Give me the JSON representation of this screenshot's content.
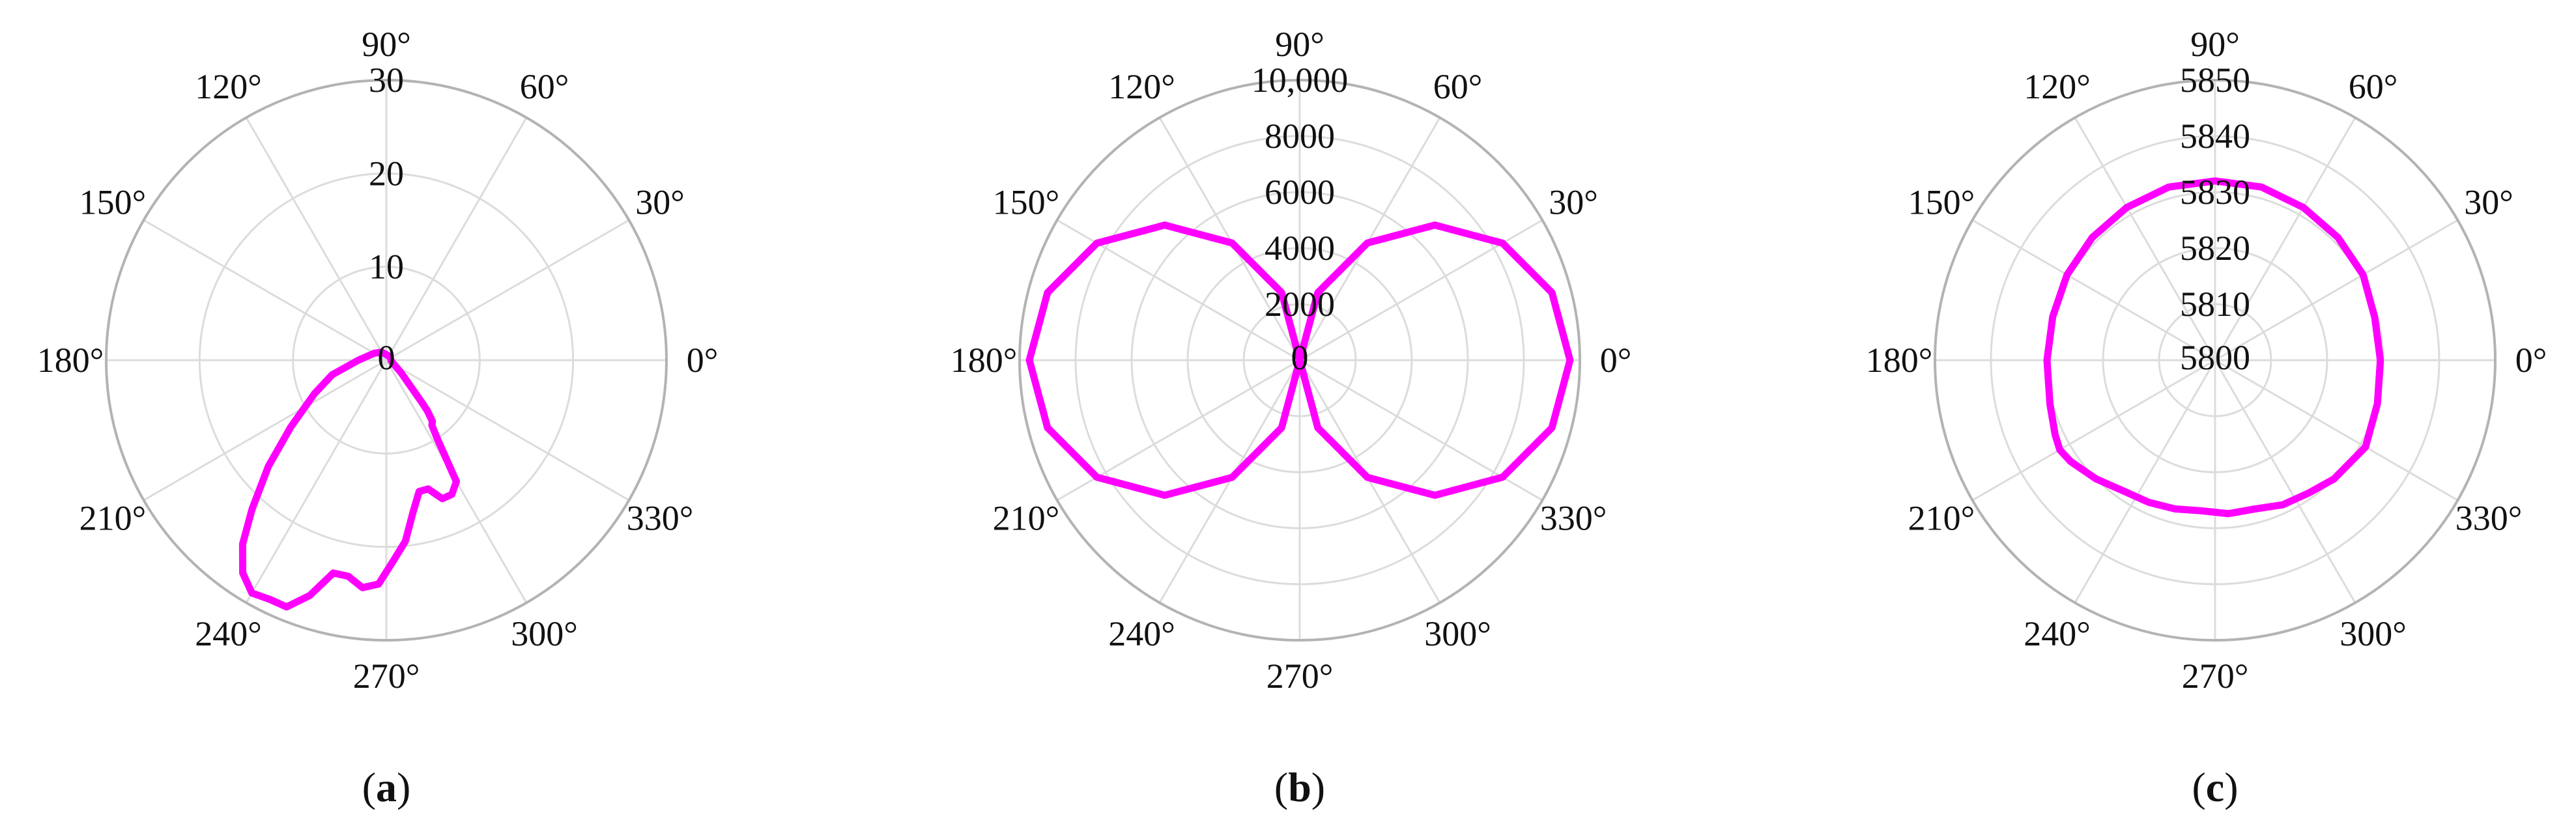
{
  "chart_data": [
    {
      "type": "polar",
      "panel_label": "a",
      "angular_ticks": [
        "0°",
        "30°",
        "60°",
        "90°",
        "120°",
        "150°",
        "180°",
        "210°",
        "240°",
        "270°",
        "300°",
        "330°"
      ],
      "radial_ticks": [
        "0",
        "10",
        "20",
        "30"
      ],
      "rlim": [
        0,
        30
      ],
      "grid": true,
      "series": [
        {
          "color": "#ff00ff",
          "theta_deg": [
            5,
            30,
            60,
            90,
            120,
            150,
            180,
            195,
            205,
            215,
            222,
            228,
            232,
            236,
            240,
            244,
            248,
            252,
            256,
            260,
            264,
            268,
            272,
            276,
            280,
            284,
            288,
            292,
            296,
            300,
            303,
            305,
            307,
            309,
            310,
            315,
            320,
            330,
            345,
            355
          ],
          "r": [
            0.5,
            0.5,
            0.5,
            0.6,
            1.0,
            1.5,
            3.0,
            6.0,
            8.5,
            12.5,
            17.0,
            21.5,
            25.0,
            27.5,
            28.8,
            28.5,
            28.5,
            26.5,
            23.5,
            23.5,
            24.5,
            24.0,
            21.5,
            19.5,
            16.5,
            14.5,
            14.5,
            16.0,
            16.0,
            15.0,
            10.0,
            8.5,
            8.2,
            7.0,
            6.0,
            3.0,
            2.0,
            1.0,
            0.6,
            0.5
          ]
        }
      ]
    },
    {
      "type": "polar",
      "panel_label": "b",
      "angular_ticks": [
        "0°",
        "30°",
        "60°",
        "90°",
        "120°",
        "150°",
        "180°",
        "210°",
        "240°",
        "270°",
        "300°",
        "330°"
      ],
      "radial_ticks": [
        "0",
        "2000",
        "4000",
        "6000",
        "8000",
        "10,000"
      ],
      "rlim": [
        0,
        10000
      ],
      "grid": true,
      "series": [
        {
          "color": "#ff00ff",
          "theta_deg": [
            0,
            15,
            30,
            45,
            60,
            75,
            90,
            105,
            120,
            135,
            150,
            165,
            180,
            195,
            210,
            225,
            240,
            255,
            270,
            285,
            300,
            315,
            330,
            345
          ],
          "r": [
            9650,
            9320,
            8360,
            6820,
            4830,
            2500,
            0,
            2500,
            4830,
            6820,
            8360,
            9320,
            9650,
            9320,
            8360,
            6820,
            4830,
            2500,
            0,
            2500,
            4830,
            6820,
            8360,
            9320
          ]
        }
      ]
    },
    {
      "type": "polar",
      "panel_label": "c",
      "angular_ticks": [
        "0°",
        "30°",
        "60°",
        "90°",
        "120°",
        "150°",
        "180°",
        "210°",
        "240°",
        "270°",
        "300°",
        "330°"
      ],
      "radial_ticks": [
        "5800",
        "5810",
        "5820",
        "5830",
        "5840",
        "5850"
      ],
      "rlim": [
        5800,
        5850
      ],
      "grid": true,
      "series": [
        {
          "color": "#ff00ff",
          "theta_deg": [
            0,
            15,
            30,
            45,
            60,
            75,
            90,
            105,
            120,
            135,
            150,
            165,
            180,
            195,
            205,
            210,
            215,
            225,
            235,
            245,
            255,
            265,
            275,
            285,
            295,
            305,
            315,
            330,
            345
          ],
          "r": [
            5829.5,
            5829.5,
            5830.5,
            5831.0,
            5831.5,
            5832.0,
            5832.0,
            5832.0,
            5831.5,
            5831.0,
            5830.5,
            5830.0,
            5830.0,
            5830.5,
            5831.5,
            5832.0,
            5831.5,
            5830.0,
            5828.5,
            5828.0,
            5827.5,
            5827.0,
            5827.5,
            5827.5,
            5828.5,
            5829.0,
            5830.0,
            5831.0,
            5830.0
          ]
        }
      ]
    }
  ]
}
